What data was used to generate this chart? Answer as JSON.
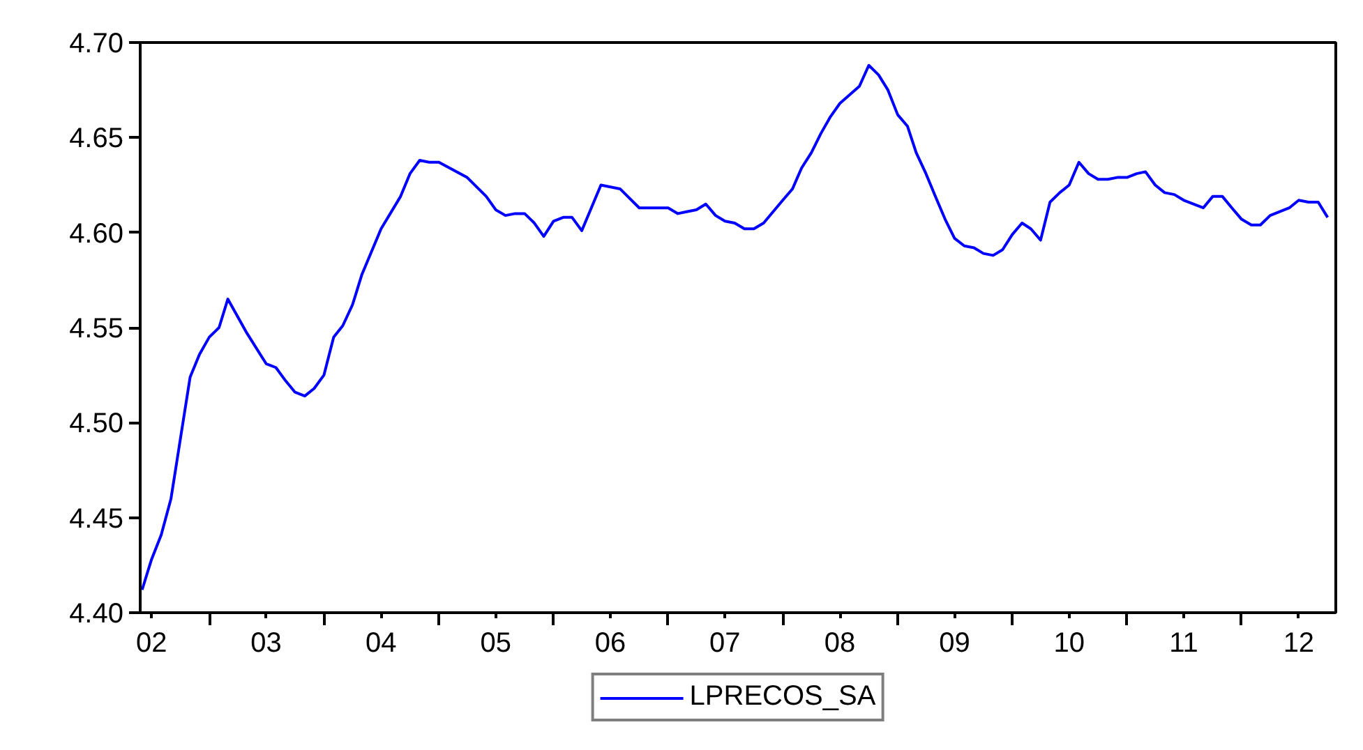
{
  "chart_data": {
    "type": "line",
    "legend": "bottom",
    "grid": false,
    "xlim": [
      "2002-05-26",
      "2012-10-27"
    ],
    "ylim": [
      4.4,
      4.7
    ],
    "xticks": [
      {
        "value": "2002-07",
        "label": "02"
      },
      {
        "value": "2003-07",
        "label": "03"
      },
      {
        "value": "2004-07",
        "label": "04"
      },
      {
        "value": "2005-07",
        "label": "05"
      },
      {
        "value": "2006-07",
        "label": "06"
      },
      {
        "value": "2007-07",
        "label": "07"
      },
      {
        "value": "2008-07",
        "label": "08"
      },
      {
        "value": "2009-07",
        "label": "09"
      },
      {
        "value": "2010-07",
        "label": "10"
      },
      {
        "value": "2011-07",
        "label": "11"
      },
      {
        "value": "2012-07",
        "label": "12"
      }
    ],
    "yticks": [
      {
        "value": 4.4,
        "label": "4.40"
      },
      {
        "value": 4.45,
        "label": "4.45"
      },
      {
        "value": 4.5,
        "label": "4.50"
      },
      {
        "value": 4.55,
        "label": "4.55"
      },
      {
        "value": 4.6,
        "label": "4.60"
      },
      {
        "value": 4.65,
        "label": "4.65"
      },
      {
        "value": 4.7,
        "label": "4.70"
      }
    ],
    "series": [
      {
        "name": "LPRECOS_SA",
        "color": "#0000ff",
        "x": [
          "2002-06",
          "2002-07",
          "2002-08",
          "2002-09",
          "2002-11",
          "2002-12",
          "2003-01",
          "2003-02",
          "2003-03",
          "2003-05",
          "2003-07",
          "2003-08",
          "2003-09",
          "2003-10",
          "2003-11",
          "2003-12",
          "2004-01",
          "2004-02",
          "2004-03",
          "2004-04",
          "2004-05",
          "2004-07",
          "2004-09",
          "2004-10",
          "2004-11",
          "2004-12",
          "2005-01",
          "2005-04",
          "2005-06",
          "2005-07",
          "2005-08",
          "2005-09",
          "2005-10",
          "2005-11",
          "2005-12",
          "2006-01",
          "2006-02",
          "2006-03",
          "2006-04",
          "2006-06",
          "2006-08",
          "2006-10",
          "2006-12",
          "2007-01",
          "2007-02",
          "2007-03",
          "2007-04",
          "2007-05",
          "2007-06",
          "2007-07",
          "2007-08",
          "2007-09",
          "2007-10",
          "2007-11",
          "2008-01",
          "2008-02",
          "2008-03",
          "2008-04",
          "2008-05",
          "2008-06",
          "2008-07",
          "2008-09",
          "2008-10",
          "2008-11",
          "2008-12",
          "2009-01",
          "2009-02",
          "2009-03",
          "2009-04",
          "2009-05",
          "2009-06",
          "2009-07",
          "2009-08",
          "2009-09",
          "2009-10",
          "2009-11",
          "2009-12",
          "2010-01",
          "2010-02",
          "2010-03",
          "2010-04",
          "2010-05",
          "2010-06",
          "2010-07",
          "2010-08",
          "2010-09",
          "2010-10",
          "2010-11",
          "2010-12",
          "2011-01",
          "2011-02",
          "2011-03",
          "2011-04",
          "2011-05",
          "2011-06",
          "2011-07",
          "2011-09",
          "2011-10",
          "2011-11",
          "2011-12",
          "2012-01",
          "2012-02",
          "2012-03",
          "2012-04",
          "2012-06",
          "2012-07",
          "2012-08",
          "2012-09",
          "2012-10"
        ],
        "values": [
          4.412,
          4.428,
          4.441,
          4.46,
          4.524,
          4.536,
          4.545,
          4.55,
          4.565,
          4.547,
          4.531,
          4.529,
          4.522,
          4.516,
          4.514,
          4.518,
          4.525,
          4.545,
          4.551,
          4.562,
          4.578,
          4.602,
          4.619,
          4.631,
          4.638,
          4.637,
          4.637,
          4.629,
          4.619,
          4.612,
          4.609,
          4.61,
          4.61,
          4.605,
          4.598,
          4.606,
          4.608,
          4.608,
          4.601,
          4.625,
          4.623,
          4.613,
          4.613,
          4.613,
          4.61,
          4.611,
          4.612,
          4.615,
          4.609,
          4.606,
          4.605,
          4.602,
          4.602,
          4.605,
          4.617,
          4.623,
          4.634,
          4.642,
          4.652,
          4.661,
          4.668,
          4.677,
          4.688,
          4.683,
          4.675,
          4.662,
          4.656,
          4.642,
          4.631,
          4.619,
          4.607,
          4.597,
          4.593,
          4.592,
          4.589,
          4.588,
          4.591,
          4.599,
          4.605,
          4.602,
          4.596,
          4.616,
          4.621,
          4.625,
          4.637,
          4.631,
          4.628,
          4.628,
          4.629,
          4.629,
          4.631,
          4.632,
          4.625,
          4.621,
          4.62,
          4.617,
          4.613,
          4.619,
          4.619,
          4.613,
          4.607,
          4.604,
          4.604,
          4.609,
          4.613,
          4.617,
          4.616,
          4.616,
          4.608
        ]
      }
    ]
  }
}
